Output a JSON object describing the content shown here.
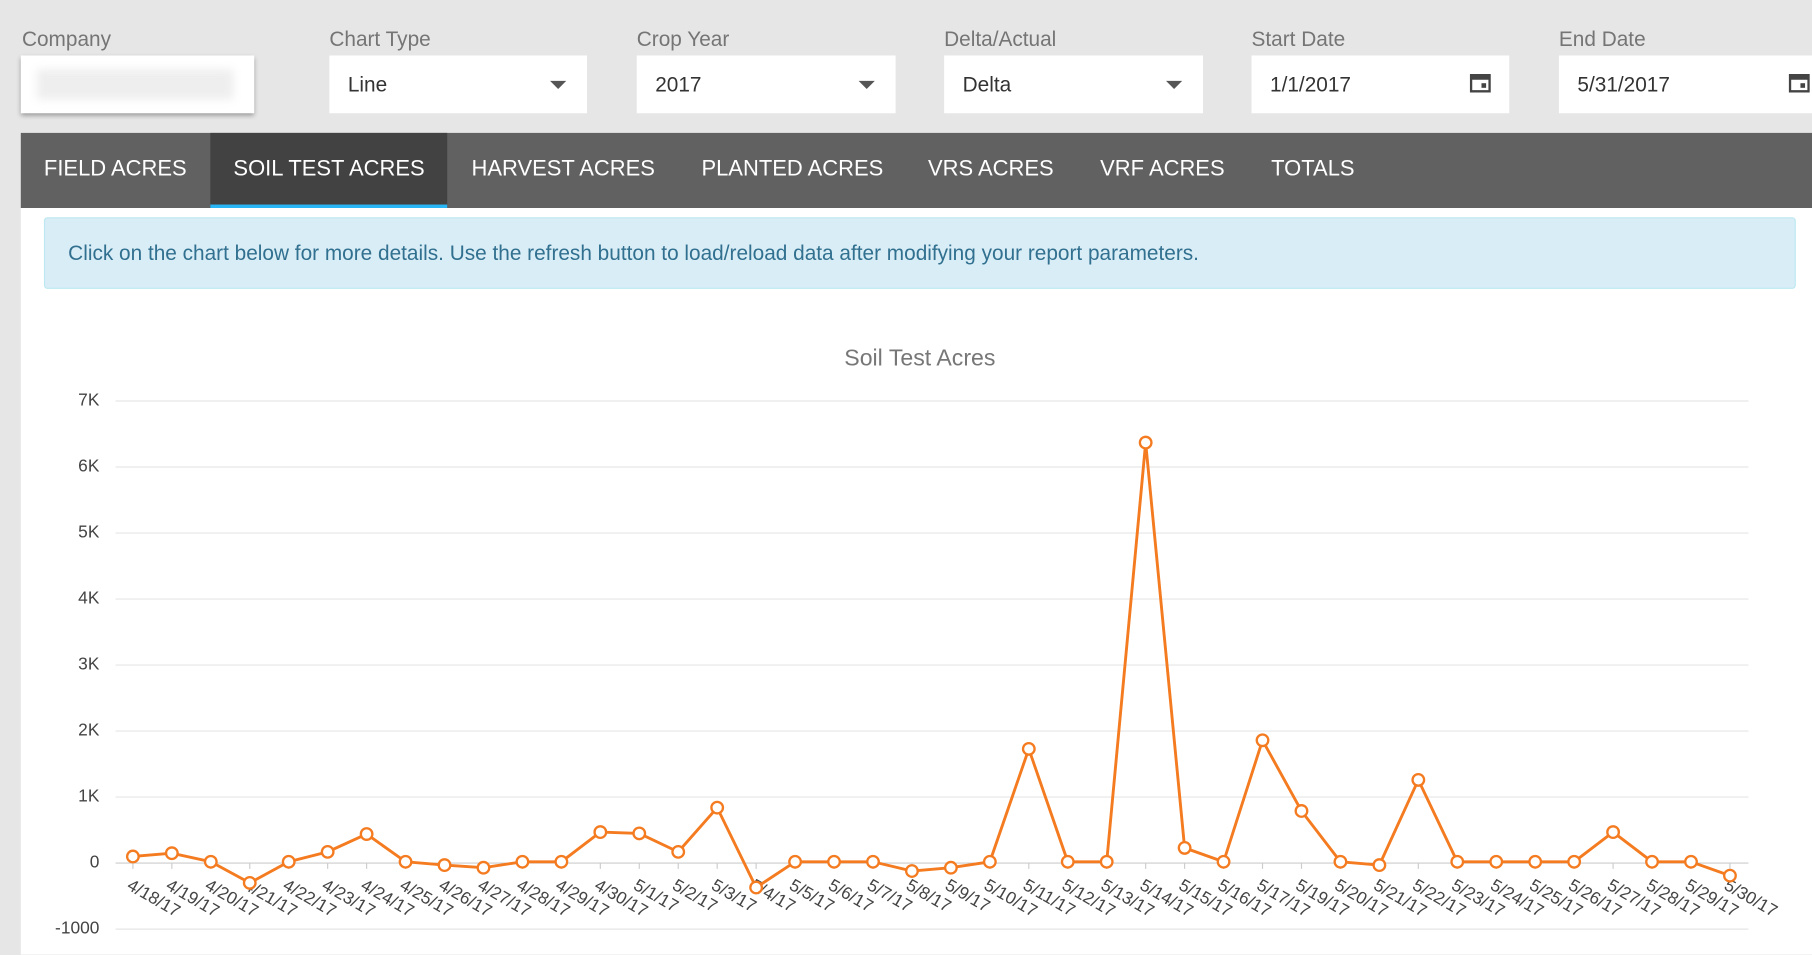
{
  "filters": [
    {
      "label": "Company"
    },
    {
      "label": "Chart Type",
      "value": "Line"
    },
    {
      "label": "Crop Year",
      "value": "2017"
    },
    {
      "label": "Delta/Actual",
      "value": "Delta"
    },
    {
      "label": "Start Date",
      "value": "1/1/2017"
    },
    {
      "label": "End Date",
      "value": "5/31/2017"
    }
  ],
  "tabs": [
    "FIELD ACRES",
    "SOIL TEST ACRES",
    "HARVEST ACRES",
    "PLANTED ACRES",
    "VRS ACRES",
    "VRF ACRES",
    "TOTALS"
  ],
  "active_tab": 1,
  "banner": "Click on the chart below for more details. Use the refresh button to load/reload data after modifying your report parameters.",
  "chart_data": {
    "type": "line",
    "title": "Soil Test Acres",
    "categories": [
      "4/18/17",
      "4/19/17",
      "4/20/17",
      "4/21/17",
      "4/22/17",
      "4/23/17",
      "4/24/17",
      "4/25/17",
      "4/26/17",
      "4/27/17",
      "4/28/17",
      "4/29/17",
      "4/30/17",
      "5/1/17",
      "5/2/17",
      "5/3/17",
      "5/4/17",
      "5/5/17",
      "5/6/17",
      "5/7/17",
      "5/8/17",
      "5/9/17",
      "5/10/17",
      "5/11/17",
      "5/12/17",
      "5/13/17",
      "5/14/17",
      "5/15/17",
      "5/16/17",
      "5/17/17",
      "5/19/17",
      "5/20/17",
      "5/21/17",
      "5/22/17",
      "5/23/17",
      "5/24/17",
      "5/25/17",
      "5/26/17",
      "5/27/17",
      "5/28/17",
      "5/29/17",
      "5/30/17"
    ],
    "series": [
      {
        "name": "Soil Test Acres",
        "color": "#f47b20",
        "values": [
          100,
          150,
          20,
          -300,
          20,
          170,
          440,
          20,
          -30,
          -70,
          20,
          20,
          470,
          450,
          170,
          840,
          -370,
          20,
          20,
          20,
          -120,
          -70,
          20,
          1730,
          20,
          20,
          6370,
          230,
          20,
          1860,
          790,
          20,
          -30,
          1260,
          20,
          20,
          20,
          20,
          470,
          20,
          20,
          -190
        ]
      }
    ],
    "ylim": [
      -1000,
      7000
    ],
    "yticks": [
      {
        "value": -1000,
        "label": "-1000"
      },
      0,
      {
        "value": 1000,
        "label": "1K"
      },
      {
        "value": 2000,
        "label": "2K"
      },
      {
        "value": 3000,
        "label": "3K"
      },
      {
        "value": 4000,
        "label": "4K"
      },
      {
        "value": 5000,
        "label": "5K"
      },
      {
        "value": 6000,
        "label": "6K"
      },
      {
        "value": 7000,
        "label": "7K"
      }
    ],
    "grid": true
  }
}
